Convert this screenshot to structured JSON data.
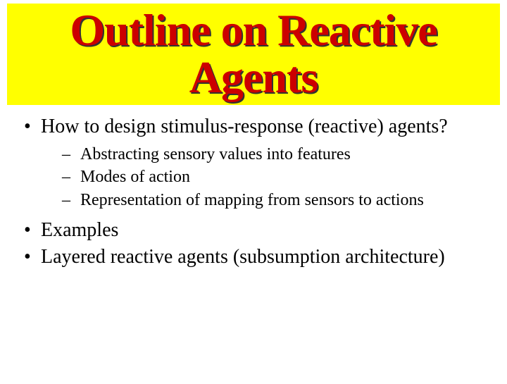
{
  "title": {
    "line1": "Outline on Reactive",
    "line2": "Agents",
    "text_color": "#cc0000",
    "shadow_color": "#333333",
    "bg_color": "#ffff00",
    "font_size": 64,
    "font_weight": "bold"
  },
  "body": {
    "font_family": "Times New Roman",
    "text_color": "#000000",
    "bg_color": "#ffffff",
    "level1_fontsize": 28,
    "level2_fontsize": 24
  },
  "bullets": [
    {
      "text": "How to design stimulus-response (reactive) agents?",
      "sub": [
        "Abstracting sensory values into features",
        "Modes of action",
        "Representation of mapping from sensors to actions"
      ]
    },
    {
      "text": "Examples",
      "sub": []
    },
    {
      "text": "Layered reactive agents (subsumption architecture)",
      "sub": []
    }
  ]
}
